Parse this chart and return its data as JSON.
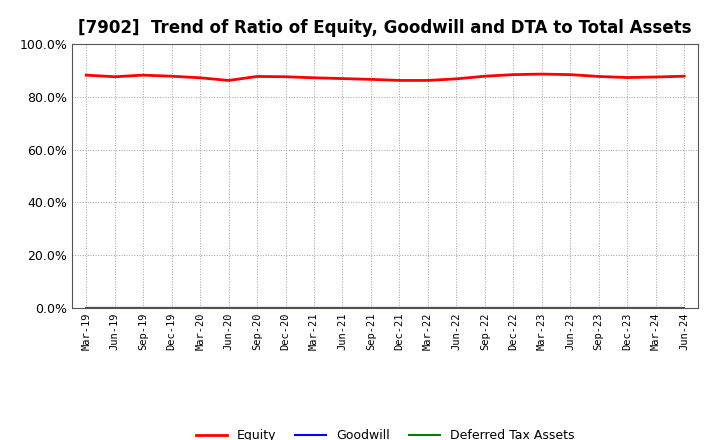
{
  "title": "[7902]  Trend of Ratio of Equity, Goodwill and DTA to Total Assets",
  "x_labels": [
    "Mar-19",
    "Jun-19",
    "Sep-19",
    "Dec-19",
    "Mar-20",
    "Jun-20",
    "Sep-20",
    "Dec-20",
    "Mar-21",
    "Jun-21",
    "Sep-21",
    "Dec-21",
    "Mar-22",
    "Jun-22",
    "Sep-22",
    "Dec-22",
    "Mar-23",
    "Jun-23",
    "Sep-23",
    "Dec-23",
    "Mar-24",
    "Jun-24"
  ],
  "equity": [
    0.882,
    0.876,
    0.882,
    0.878,
    0.872,
    0.862,
    0.877,
    0.876,
    0.872,
    0.869,
    0.866,
    0.862,
    0.862,
    0.868,
    0.878,
    0.884,
    0.886,
    0.884,
    0.877,
    0.873,
    0.875,
    0.878
  ],
  "goodwill": [
    0.0,
    0.0,
    0.0,
    0.0,
    0.0,
    0.0,
    0.0,
    0.0,
    0.0,
    0.0,
    0.0,
    0.0,
    0.0,
    0.0,
    0.0,
    0.0,
    0.0,
    0.0,
    0.0,
    0.0,
    0.0,
    0.0
  ],
  "dta": [
    0.0,
    0.0,
    0.0,
    0.0,
    0.0,
    0.0,
    0.0,
    0.0,
    0.0,
    0.0,
    0.0,
    0.0,
    0.0,
    0.0,
    0.0,
    0.0,
    0.0,
    0.0,
    0.0,
    0.0,
    0.0,
    0.0
  ],
  "equity_color": "#FF0000",
  "goodwill_color": "#0000FF",
  "dta_color": "#008000",
  "ylim": [
    0.0,
    1.0
  ],
  "yticks": [
    0.0,
    0.2,
    0.4,
    0.6,
    0.8,
    1.0
  ],
  "background_color": "#FFFFFF",
  "grid_color": "#888888",
  "title_fontsize": 12,
  "legend_labels": [
    "Equity",
    "Goodwill",
    "Deferred Tax Assets"
  ]
}
